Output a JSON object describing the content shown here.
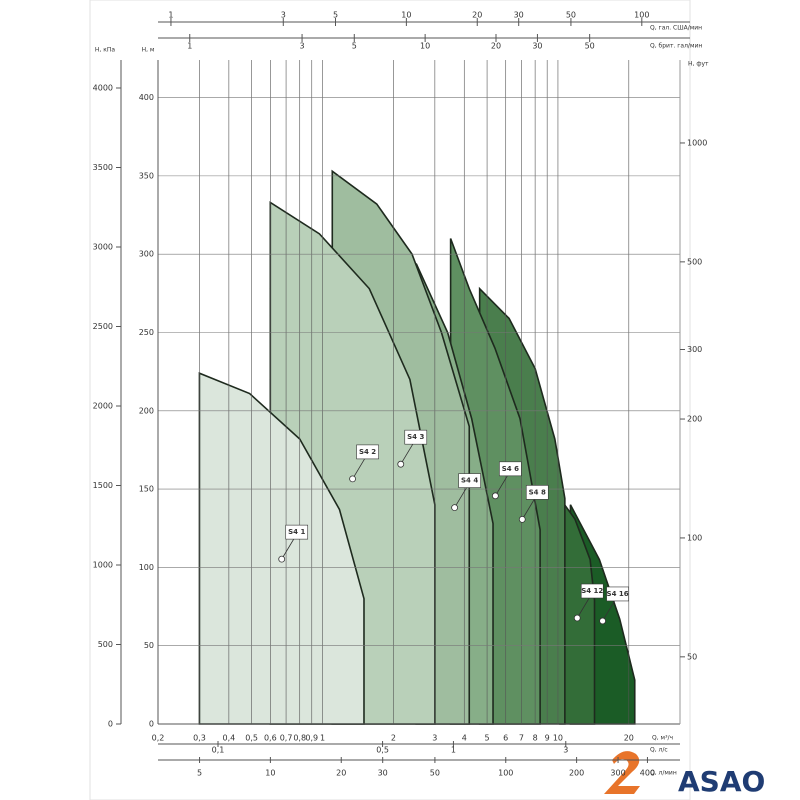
{
  "chart_data": {
    "type": "area",
    "x_label": "Q, м³/ч",
    "y_label": "H, м",
    "xscale": "log",
    "grid": true,
    "xlim": [
      0.2,
      33
    ],
    "xticks": [
      {
        "value": 0.2,
        "label": "0,2"
      },
      {
        "value": 0.3,
        "label": "0,3"
      },
      {
        "value": 0.4,
        "label": "0,4"
      },
      {
        "value": 0.5,
        "label": "0,5"
      },
      {
        "value": 0.6,
        "label": "0,6"
      },
      {
        "value": 0.7,
        "label": "0,7"
      },
      {
        "value": 0.8,
        "label": "0,8"
      },
      {
        "value": 0.9,
        "label": "0,9"
      },
      1,
      2,
      3,
      4,
      5,
      6,
      7,
      8,
      9,
      10,
      20
    ],
    "ylim": [
      0,
      424
    ],
    "yticks": [
      0,
      50,
      100,
      150,
      200,
      250,
      300,
      350,
      400
    ],
    "y_kpa": {
      "label": "H, кПа",
      "ylim": [
        0,
        4176
      ],
      "yticks": [
        0,
        500,
        1000,
        1500,
        2000,
        2500,
        3000,
        3500,
        4000
      ]
    },
    "y2_label": "H, фут",
    "y2scale": "log",
    "y2lim": [
      33.8,
      1622
    ],
    "y2ticks": [
      50,
      100,
      200,
      300,
      500,
      1000
    ],
    "top_axes": [
      {
        "label": "Q, гал. США/мин",
        "xlim": [
          0.881,
          145.3
        ],
        "xticks": [
          1,
          3,
          5,
          10,
          20,
          30,
          50,
          100
        ]
      },
      {
        "label": "Q, брит. гал/мин",
        "xlim": [
          0.733,
          121
        ],
        "xticks": [
          1,
          3,
          5,
          10,
          20,
          30,
          50
        ]
      }
    ],
    "bottom_axes": [
      {
        "label": "Q, л/с",
        "xlim": [
          0.0556,
          9.17
        ],
        "xticks": [
          {
            "value": 0.1,
            "label": "0,1"
          },
          {
            "value": 0.5,
            "label": "0,5"
          },
          1,
          3
        ]
      },
      {
        "label": "Q, л/мин",
        "xlim": [
          3.33,
          550
        ],
        "xticks": [
          5,
          10,
          20,
          30,
          50,
          100,
          200,
          300,
          400
        ]
      }
    ],
    "series": [
      {
        "name": "S4 1",
        "color": "#dbe6dc",
        "x": [
          0.3,
          0.49,
          0.8,
          1.18,
          1.5
        ],
        "values": [
          224,
          211,
          182,
          137,
          80
        ]
      },
      {
        "name": "S4 2",
        "color": "#b9d0b9",
        "x": [
          0.6,
          0.97,
          1.58,
          2.35,
          3
        ],
        "values": [
          333,
          313,
          278,
          220,
          140
        ]
      },
      {
        "name": "S4 3",
        "color": "#9fbd9f",
        "x": [
          1.1,
          1.7,
          2.4,
          3.2,
          4.2
        ],
        "values": [
          353,
          332,
          300,
          250,
          190
        ]
      },
      {
        "name": "S4 4",
        "color": "#87ae88",
        "x": [
          2.5,
          3.4,
          4.3,
          5.3
        ],
        "values": [
          294,
          250,
          195,
          128
        ]
      },
      {
        "name": "S4 6",
        "color": "#5f9061",
        "x": [
          3.5,
          4.2,
          5.4,
          6.9,
          8.4
        ],
        "values": [
          310,
          278,
          240,
          195,
          124
        ]
      },
      {
        "name": "S4 8",
        "color": "#4a7e4d",
        "x": [
          4.65,
          6.2,
          8,
          9.7,
          10.7
        ],
        "values": [
          278,
          259,
          227,
          182,
          144
        ]
      },
      {
        "name": "S4 12",
        "color": "#336d38",
        "x": [
          10.2,
          11.8,
          13.7,
          14.3
        ],
        "values": [
          144,
          131,
          105,
          79
        ]
      },
      {
        "name": "S4 16",
        "color": "#1b5c26",
        "x": [
          11.3,
          15,
          18.3,
          21.2
        ],
        "values": [
          140,
          105,
          67,
          28
        ]
      }
    ],
    "logo": "ASAO"
  }
}
